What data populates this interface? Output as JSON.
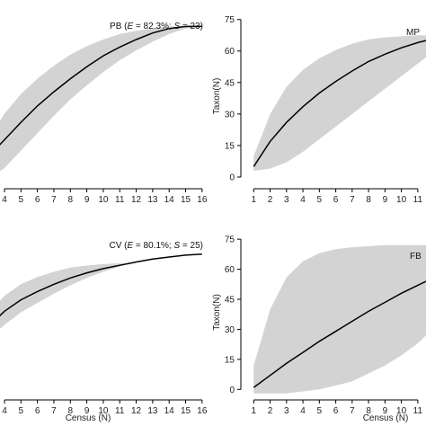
{
  "chart_data": [
    {
      "type": "area",
      "panel": "top-left",
      "annotation": {
        "site": "PB",
        "E": "82.3%",
        "S": "23"
      },
      "xlabel": "",
      "ylabel": "",
      "xlim": [
        3.4,
        16.5
      ],
      "ylim": [
        0,
        80
      ],
      "x_ticks": [
        4,
        5,
        6,
        7,
        8,
        9,
        10,
        11,
        12,
        13,
        14,
        15,
        16
      ],
      "y_ticks": [],
      "series": [
        {
          "x": [
            3,
            4,
            5,
            6,
            7,
            8,
            9,
            10,
            11,
            12,
            13,
            14,
            15,
            16
          ],
          "mean": [
            12,
            20,
            28,
            35.5,
            42,
            48,
            53.5,
            58.5,
            62.5,
            66,
            69,
            71,
            72,
            72
          ],
          "lower": [
            2,
            7,
            15,
            23,
            31,
            38.5,
            45,
            51,
            56.5,
            61,
            65,
            68.5,
            71,
            72
          ],
          "upper": [
            20,
            32,
            41,
            48,
            54,
            59,
            63,
            66,
            68.5,
            70,
            71,
            72,
            72,
            72
          ]
        }
      ]
    },
    {
      "type": "area",
      "panel": "top-right",
      "annotation": {
        "site": "MP",
        "E": "",
        "S": ""
      },
      "xlabel": "",
      "ylabel": "Taxon(N)",
      "xlim": [
        0.6,
        11.5
      ],
      "ylim": [
        -3,
        80
      ],
      "x_ticks": [
        1,
        2,
        3,
        4,
        5,
        6,
        7,
        8,
        9,
        10,
        11
      ],
      "y_ticks": [
        0,
        15,
        30,
        45,
        60,
        75
      ],
      "series": [
        {
          "x": [
            1,
            2,
            3,
            4,
            5,
            6,
            7,
            8,
            9,
            10,
            11,
            11.5
          ],
          "mean": [
            5,
            17,
            26,
            33.5,
            40,
            45.5,
            50.5,
            55,
            58.5,
            61.5,
            64,
            65
          ],
          "lower": [
            3,
            4,
            7,
            12,
            18,
            24,
            30,
            36,
            42,
            48,
            54,
            57
          ],
          "upper": [
            10,
            30,
            43,
            51,
            56.5,
            60.5,
            63.5,
            65.5,
            66.5,
            67,
            67.5,
            67.5
          ]
        }
      ]
    },
    {
      "type": "area",
      "panel": "bottom-left",
      "annotation": {
        "site": "CV",
        "E": "80.1%",
        "S": "25"
      },
      "xlabel": "Census (N)",
      "ylabel": "",
      "xlim": [
        3.4,
        16.5
      ],
      "ylim": [
        0,
        80
      ],
      "x_ticks": [
        4,
        5,
        6,
        7,
        8,
        9,
        10,
        11,
        12,
        13,
        14,
        15,
        16
      ],
      "y_ticks": [],
      "series": [
        {
          "x": [
            3,
            4,
            5,
            6,
            7,
            8,
            9,
            10,
            11,
            11.5,
            12,
            13,
            14,
            15,
            16
          ],
          "mean": [
            33,
            40.5,
            46,
            50,
            53.5,
            56.5,
            59,
            61,
            62.6,
            63.4,
            64.2,
            65.6,
            66.6,
            67.5,
            68
          ],
          "lower": [
            27,
            34,
            40,
            44.5,
            49,
            53,
            56.5,
            59.5,
            62,
            63.4,
            64.2,
            65.6,
            66.6,
            67.5,
            68
          ],
          "upper": [
            39,
            48,
            53.5,
            57,
            59.5,
            61.5,
            62.5,
            63.2,
            63.6,
            63.4,
            64.2,
            65.6,
            66.6,
            67.5,
            68
          ]
        }
      ]
    },
    {
      "type": "area",
      "panel": "bottom-right",
      "annotation": {
        "site": "FB",
        "E": "",
        "S": ""
      },
      "xlabel": "Census (N)",
      "ylabel": "Taxon(N)",
      "xlim": [
        0.6,
        11.5
      ],
      "ylim": [
        -3,
        80
      ],
      "x_ticks": [
        1,
        2,
        3,
        4,
        5,
        6,
        7,
        8,
        9,
        10,
        11
      ],
      "y_ticks": [
        0,
        15,
        30,
        45,
        60,
        75
      ],
      "series": [
        {
          "x": [
            1,
            2,
            3,
            4,
            5,
            6,
            7,
            8,
            9,
            10,
            11,
            11.5
          ],
          "mean": [
            1,
            7,
            13,
            18.5,
            24,
            29,
            34,
            39,
            43.5,
            48,
            52,
            54
          ],
          "lower": [
            -2,
            -2,
            -2,
            -1,
            0,
            2,
            4,
            8,
            12,
            17,
            23,
            27
          ],
          "upper": [
            12,
            40,
            56,
            64,
            68,
            70,
            71,
            71.5,
            72,
            72,
            72,
            72
          ]
        }
      ]
    }
  ]
}
